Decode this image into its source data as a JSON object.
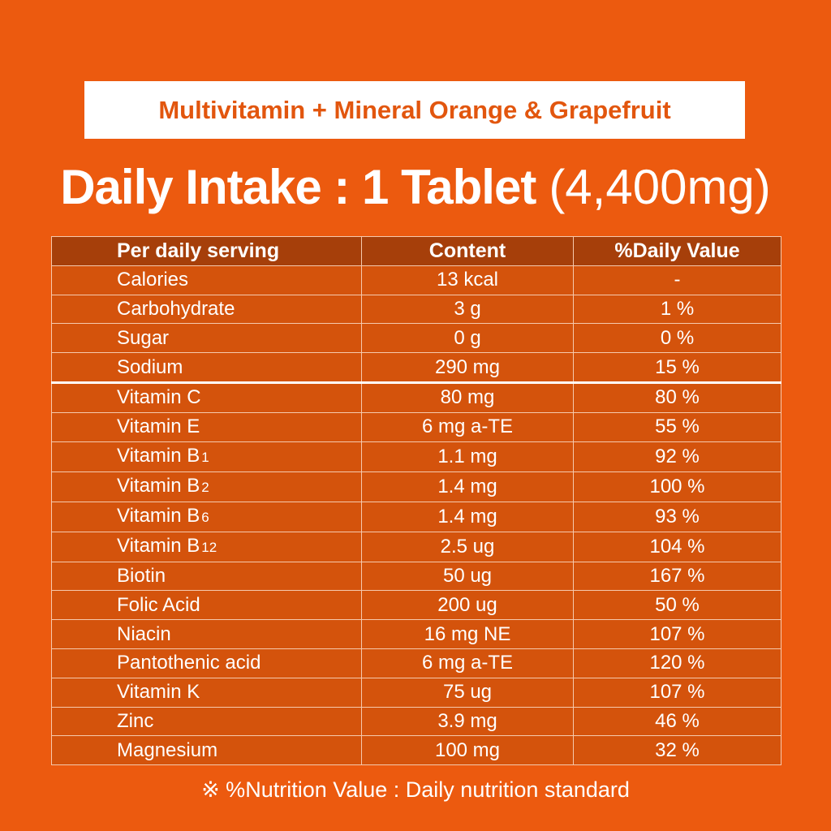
{
  "title": "Multivitamin + Mineral Orange & Grapefruit",
  "intake": {
    "bold": "Daily Intake : 1 Tablet",
    "light": "(4,400mg)"
  },
  "table": {
    "headers": [
      "Per daily serving",
      "Content",
      "%Daily Value"
    ],
    "rows": [
      {
        "name": "Calories",
        "sub": "",
        "content": "13 kcal",
        "dv": "-"
      },
      {
        "name": "Carbohydrate",
        "sub": "",
        "content": "3 g",
        "dv": "1 %"
      },
      {
        "name": "Sugar",
        "sub": "",
        "content": "0 g",
        "dv": "0 %"
      },
      {
        "name": "Sodium",
        "sub": "",
        "content": "290 mg",
        "dv": "15 %"
      },
      {
        "name": "Vitamin C",
        "sub": "",
        "content": "80 mg",
        "dv": "80 %"
      },
      {
        "name": "Vitamin E",
        "sub": "",
        "content": "6 mg a-TE",
        "dv": "55 %"
      },
      {
        "name": "Vitamin B",
        "sub": "1",
        "content": "1.1 mg",
        "dv": "92 %"
      },
      {
        "name": "Vitamin B",
        "sub": "2",
        "content": "1.4 mg",
        "dv": "100 %"
      },
      {
        "name": "Vitamin B",
        "sub": "6",
        "content": "1.4 mg",
        "dv": "93 %"
      },
      {
        "name": "Vitamin B",
        "sub": "12",
        "content": "2.5 ug",
        "dv": "104 %"
      },
      {
        "name": "Biotin",
        "sub": "",
        "content": "50 ug",
        "dv": "167 %"
      },
      {
        "name": "Folic Acid",
        "sub": "",
        "content": "200 ug",
        "dv": "50 %"
      },
      {
        "name": "Niacin",
        "sub": "",
        "content": "16 mg NE",
        "dv": "107 %"
      },
      {
        "name": "Pantothenic acid",
        "sub": "",
        "content": "6 mg a-TE",
        "dv": "120 %"
      },
      {
        "name": "Vitamin K",
        "sub": "",
        "content": "75 ug",
        "dv": "107 %"
      },
      {
        "name": "Zinc",
        "sub": "",
        "content": "3.9 mg",
        "dv": "46 %"
      },
      {
        "name": "Magnesium",
        "sub": "",
        "content": "100 mg",
        "dv": "32 %"
      }
    ]
  },
  "note": "※ %Nutrition Value : Daily nutrition standard",
  "colors": {
    "background": "#ec5a0f",
    "header_row": "#a63f0a",
    "row": "#d4530c",
    "title_text": "#e2560e"
  }
}
